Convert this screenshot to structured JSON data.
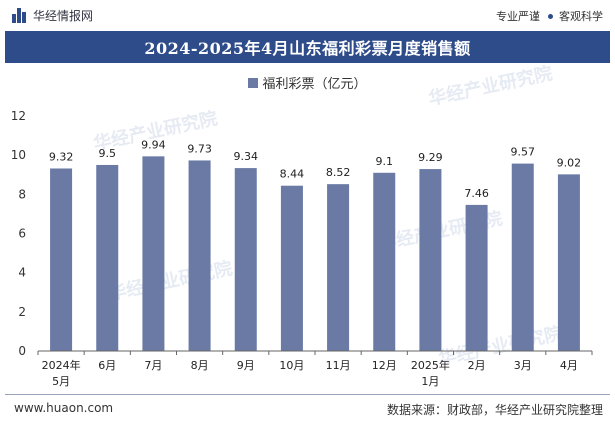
{
  "header": {
    "brand_name": "华经情报网",
    "slogan_left": "专业严谨",
    "slogan_right": "客观科学"
  },
  "chart_data": {
    "type": "bar",
    "title": "2024-2025年4月山东福利彩票月度销售额",
    "legend": "福利彩票（亿元）",
    "series": [
      {
        "name": "福利彩票（亿元）",
        "values": [
          9.32,
          9.5,
          9.94,
          9.73,
          9.34,
          8.44,
          8.52,
          9.1,
          9.29,
          7.46,
          9.57,
          9.02
        ]
      }
    ],
    "categories": [
      "2024年5月",
      "6月",
      "7月",
      "8月",
      "9月",
      "10月",
      "11月",
      "12月",
      "2025年1月",
      "2月",
      "3月",
      "4月"
    ],
    "y_ticks": [
      "0",
      "2",
      "4",
      "6",
      "8",
      "10",
      "12"
    ],
    "ylim": [
      0,
      12
    ],
    "grid": false,
    "legend_position": "top-center",
    "colors": {
      "bar": "#6a7aa5",
      "banner": "#2f4c8a"
    }
  },
  "watermark": "华经产业研究院",
  "footer": {
    "website": "www.huaon.com",
    "source": "数据来源：财政部，华经产业研究院整理"
  }
}
